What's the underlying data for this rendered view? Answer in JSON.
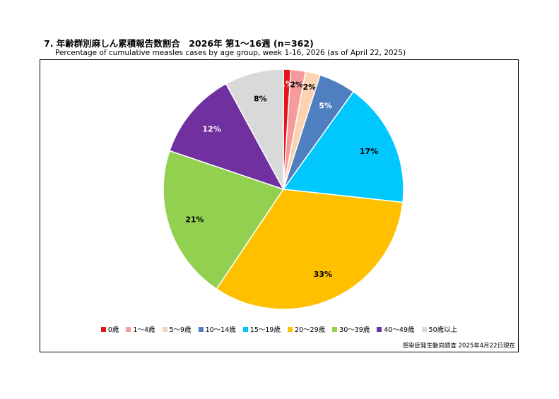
{
  "header": {
    "title": "7. 年齢群別麻しん累積報告数割合　2026年 第1～16週 (n=362)",
    "subtitle": "Percentage of cumulative measles cases by age group, week 1-16, 2026 (as of April 22, 2025)"
  },
  "footer": {
    "source": "感染症発生動向調査 2025年4月22日現在"
  },
  "chart_data": {
    "type": "pie",
    "categories": [
      "0歳",
      "1～4歳",
      "5～9歳",
      "10～14歳",
      "15～19歳",
      "20～29歳",
      "30～39歳",
      "40～49歳",
      "50歳以上"
    ],
    "values": [
      1,
      2,
      2,
      5,
      17,
      33,
      21,
      12,
      8
    ],
    "labels": [
      "1%",
      "2%",
      "2%",
      "5%",
      "17%",
      "33%",
      "21%",
      "12%",
      "8%"
    ],
    "colors": [
      "#e2161b",
      "#f59b9b",
      "#fcd3b0",
      "#4f7fc0",
      "#00c8ff",
      "#ffc000",
      "#92d050",
      "#7030a0",
      "#d9d9d9"
    ],
    "label_colors": [
      "#ffffff",
      "#000000",
      "#000000",
      "#ffffff",
      "#000000",
      "#000000",
      "#000000",
      "#ffffff",
      "#000000"
    ],
    "start": "12 o'clock",
    "direction": "clockwise",
    "legend_position": "bottom"
  }
}
